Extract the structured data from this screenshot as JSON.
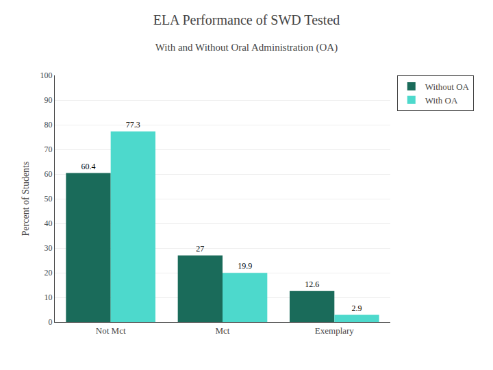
{
  "chart_data": {
    "type": "bar",
    "title": "ELA Performance of SWD Tested",
    "subtitle": "With and Without Oral Administration (OA)",
    "categories": [
      "Not Mct",
      "Mct",
      "Exemplary"
    ],
    "series": [
      {
        "name": "Without OA",
        "color": "#1a6b5a",
        "values": [
          60.4,
          27.0,
          12.6
        ]
      },
      {
        "name": "With OA",
        "color": "#4dd9cc",
        "values": [
          77.3,
          19.9,
          2.9
        ]
      }
    ],
    "ylabel": "Percent of Students",
    "ylim": [
      0,
      100
    ],
    "yticks": [
      0,
      10,
      20,
      30,
      40,
      50,
      60,
      70,
      80,
      90,
      100
    ],
    "grid": true,
    "legend": "right",
    "data_labels": true
  }
}
